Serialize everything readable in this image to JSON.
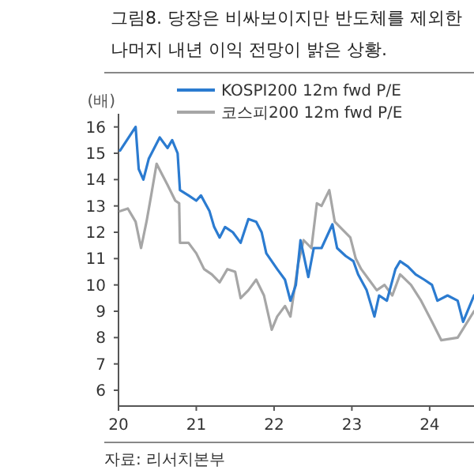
{
  "chart_data": {
    "type": "line",
    "title": "그림8. 당장은 비싸보이지만 반도체를 제외한 나머지 내년 이익 전망이 밝은 상황.",
    "ylabel": "(배)",
    "annotations": [
      "자료: 리서치본부"
    ],
    "xlim": [
      20,
      24.57
    ],
    "xticks": [
      20,
      21,
      22,
      23,
      24
    ],
    "ylim": [
      5.4,
      16.5
    ],
    "yticks": [
      6,
      7,
      8,
      9,
      10,
      11,
      12,
      13,
      14,
      15,
      16
    ],
    "grid": false,
    "legend": "top left",
    "marker": "none",
    "line_style": "solid",
    "series": [
      {
        "name": "KOSPI200 12m fwd P/E",
        "color": "#2b7bd0",
        "x": [
          20.02,
          20.22,
          20.26,
          20.32,
          20.39,
          20.53,
          20.63,
          20.69,
          20.76,
          20.79,
          20.9,
          21.0,
          21.06,
          21.17,
          21.23,
          21.3,
          21.37,
          21.47,
          21.57,
          21.67,
          21.77,
          21.84,
          21.9,
          22.04,
          22.14,
          22.21,
          22.28,
          22.34,
          22.44,
          22.51,
          22.61,
          22.75,
          22.81,
          22.92,
          23.02,
          23.08,
          23.19,
          23.29,
          23.35,
          23.45,
          23.56,
          23.62,
          23.72,
          23.82,
          23.93,
          24.03,
          24.1,
          24.23,
          24.36,
          24.43,
          24.57
        ],
        "values": [
          15.1,
          16.0,
          14.4,
          14.0,
          14.8,
          15.6,
          15.2,
          15.5,
          15.0,
          13.6,
          13.4,
          13.2,
          13.4,
          12.8,
          12.2,
          11.8,
          12.2,
          12.0,
          11.6,
          12.5,
          12.4,
          12.0,
          11.2,
          10.6,
          10.2,
          9.4,
          10.0,
          11.7,
          10.3,
          11.4,
          11.4,
          12.3,
          11.4,
          11.1,
          10.9,
          10.4,
          9.8,
          8.8,
          9.6,
          9.4,
          10.6,
          10.9,
          10.7,
          10.4,
          10.2,
          10.0,
          9.4,
          9.6,
          9.4,
          8.6,
          9.6
        ]
      },
      {
        "name": "코스피200 12m fwd P/E",
        "color": "#a6a6a6",
        "x": [
          20.02,
          20.12,
          20.22,
          20.29,
          20.36,
          20.42,
          20.49,
          20.56,
          20.63,
          20.73,
          20.78,
          20.79,
          20.9,
          21.0,
          21.1,
          21.2,
          21.3,
          21.4,
          21.5,
          21.57,
          21.67,
          21.77,
          21.87,
          21.97,
          22.04,
          22.14,
          22.21,
          22.31,
          22.38,
          22.48,
          22.55,
          22.61,
          22.71,
          22.78,
          22.88,
          22.98,
          23.05,
          23.12,
          23.22,
          23.32,
          23.42,
          23.52,
          23.62,
          23.76,
          23.89,
          24.03,
          24.15,
          24.36,
          24.57
        ],
        "values": [
          12.8,
          12.9,
          12.4,
          11.4,
          12.4,
          13.4,
          14.6,
          14.2,
          13.8,
          13.2,
          13.1,
          11.6,
          11.6,
          11.2,
          10.6,
          10.4,
          10.1,
          10.6,
          10.5,
          9.5,
          9.8,
          10.2,
          9.6,
          8.3,
          8.8,
          9.2,
          8.8,
          10.8,
          11.7,
          11.4,
          13.1,
          13.0,
          13.6,
          12.4,
          12.1,
          11.8,
          11.0,
          10.6,
          10.2,
          9.8,
          10.0,
          9.6,
          10.4,
          10.0,
          9.4,
          8.6,
          7.9,
          8.0,
          9.0
        ]
      }
    ]
  }
}
